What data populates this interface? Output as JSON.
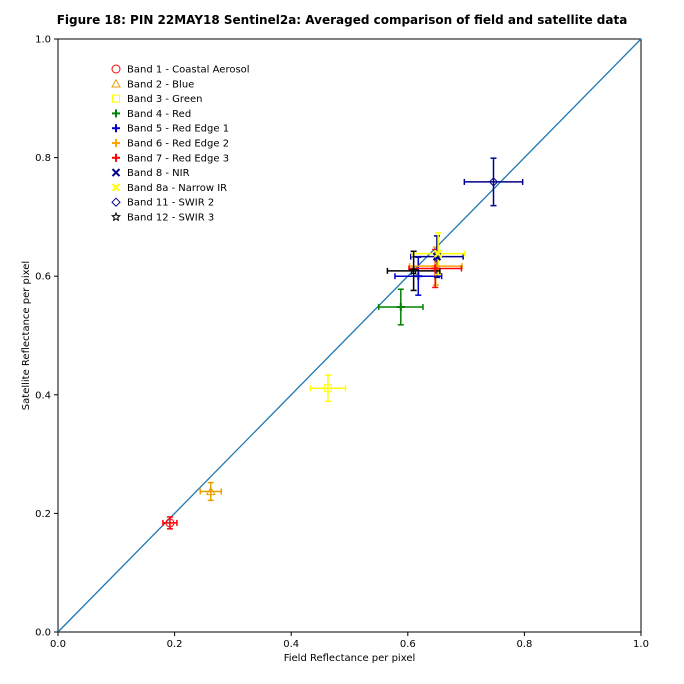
{
  "chart_data": {
    "type": "scatter",
    "title": "Figure 18: PIN 22MAY18  Sentinel2a: Averaged comparison of field and satellite data",
    "xlabel": "Field Reflectance per pixel",
    "ylabel": "Satellite Reflectance per pixel",
    "xlim": [
      0.0,
      1.0
    ],
    "ylim": [
      0.0,
      1.0
    ],
    "xticks": [
      "0.0",
      "0.2",
      "0.4",
      "0.6",
      "0.8",
      "1.0"
    ],
    "yticks": [
      "0.0",
      "0.2",
      "0.4",
      "0.6",
      "0.8",
      "1.0"
    ],
    "grid": false,
    "legend_position": "upper-left",
    "reference_line": {
      "from": [
        0,
        0
      ],
      "to": [
        1,
        1
      ],
      "color": "#1f77b4"
    },
    "series": [
      {
        "name": "Band 1 - Coastal Aerosol",
        "marker": "circle-open",
        "color": "#ff0000",
        "x": 0.192,
        "y": 0.184,
        "xerr": 0.012,
        "yerr": 0.01
      },
      {
        "name": "Band 2 - Blue",
        "marker": "triangle-open",
        "color": "#e8a000",
        "x": 0.262,
        "y": 0.237,
        "xerr": 0.018,
        "yerr": 0.015
      },
      {
        "name": "Band 3 - Green",
        "marker": "square-open",
        "color": "#ffff00",
        "x": 0.463,
        "y": 0.411,
        "xerr": 0.03,
        "yerr": 0.022
      },
      {
        "name": "Band 4 - Red",
        "marker": "plus",
        "color": "#008000",
        "x": 0.588,
        "y": 0.548,
        "xerr": 0.038,
        "yerr": 0.03
      },
      {
        "name": "Band 5 - Red Edge 1",
        "marker": "plus",
        "color": "#0000cd",
        "x": 0.618,
        "y": 0.6,
        "xerr": 0.04,
        "yerr": 0.032
      },
      {
        "name": "Band 6 - Red Edge 2",
        "marker": "plus",
        "color": "#ffa500",
        "x": 0.648,
        "y": 0.617,
        "xerr": 0.045,
        "yerr": 0.032
      },
      {
        "name": "Band 7 - Red Edge 3",
        "marker": "plus",
        "color": "#ff0000",
        "x": 0.647,
        "y": 0.613,
        "xerr": 0.045,
        "yerr": 0.032
      },
      {
        "name": "Band 8 - NIR",
        "marker": "x",
        "color": "#00008b",
        "x": 0.65,
        "y": 0.633,
        "xerr": 0.045,
        "yerr": 0.035
      },
      {
        "name": "Band 8a - Narrow IR",
        "marker": "x",
        "color": "#ffff00",
        "x": 0.652,
        "y": 0.638,
        "xerr": 0.045,
        "yerr": 0.035
      },
      {
        "name": "Band 11 - SWIR 2",
        "marker": "diamond-open",
        "color": "#00008b",
        "x": 0.747,
        "y": 0.759,
        "xerr": 0.05,
        "yerr": 0.04
      },
      {
        "name": "Band 12 - SWIR 3",
        "marker": "star",
        "color": "#000000",
        "x": 0.61,
        "y": 0.609,
        "xerr": 0.045,
        "yerr": 0.033
      }
    ]
  }
}
